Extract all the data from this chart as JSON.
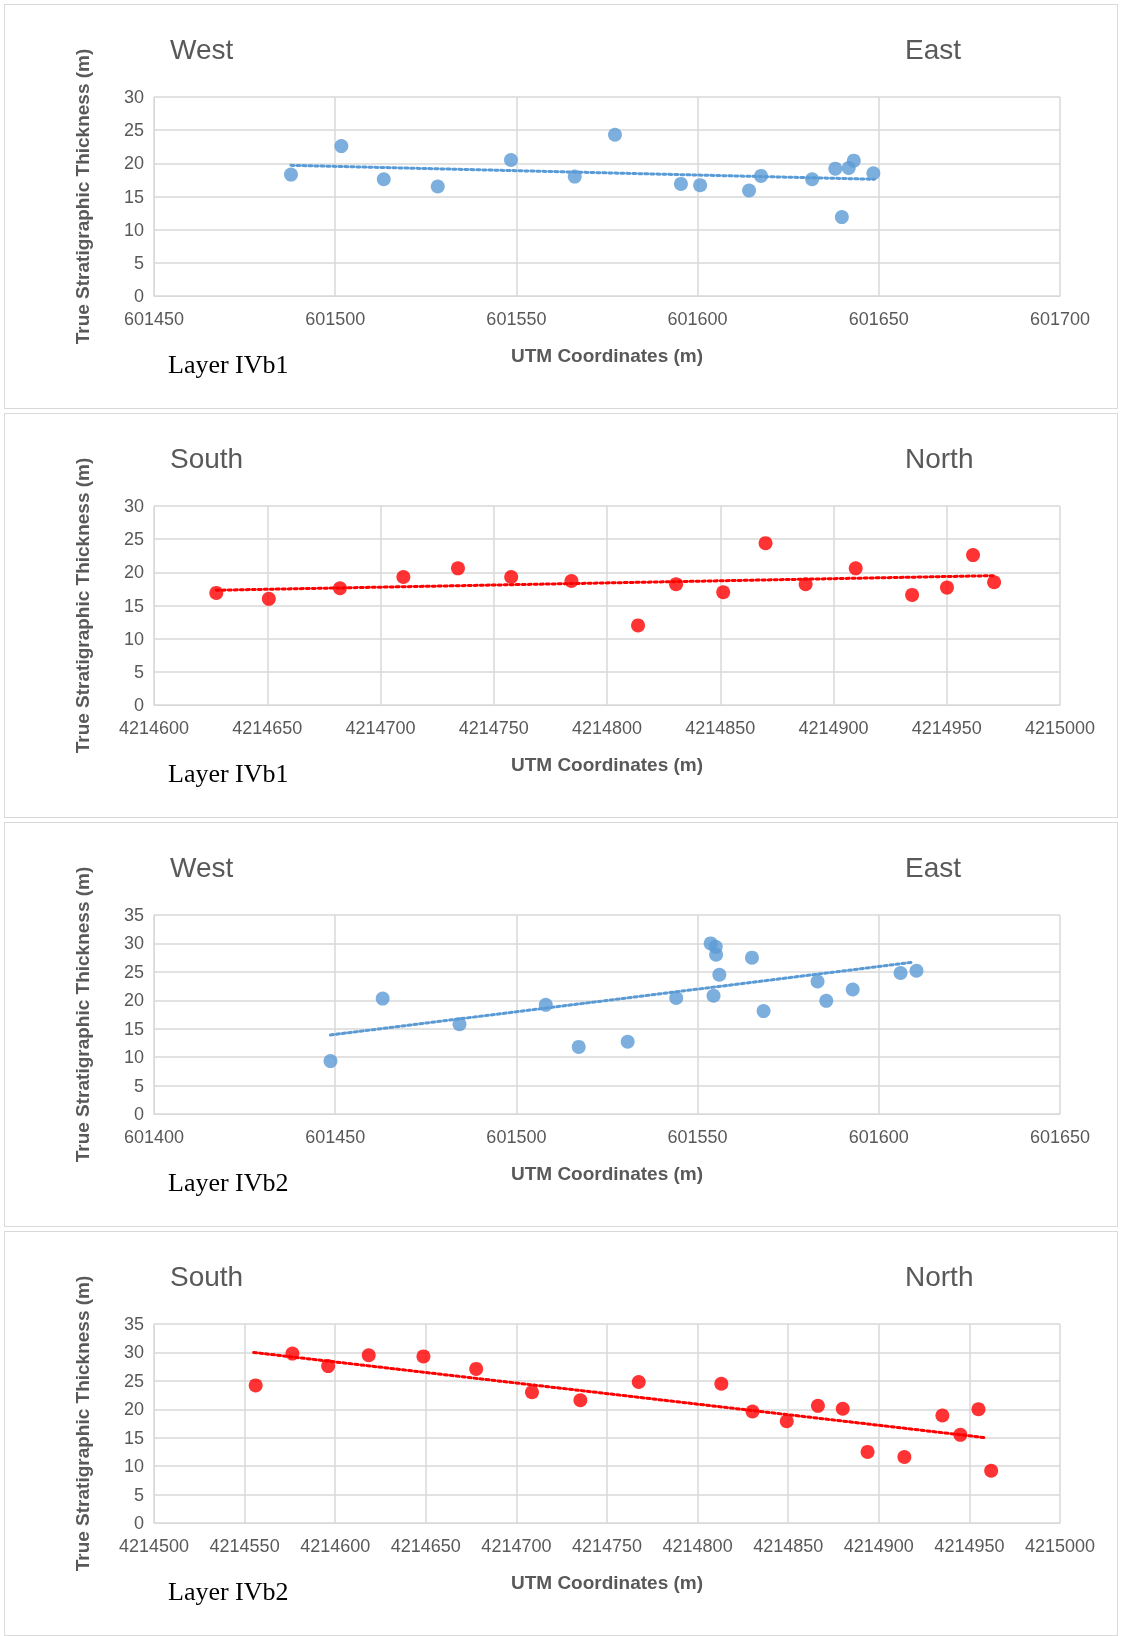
{
  "chart_data": [
    {
      "type": "scatter",
      "annotations": [
        "West",
        "East",
        "Layer IVb1"
      ],
      "xlabel": "UTM Coordinates (m)",
      "ylabel": "True Stratigraphic Thickness (m)",
      "xlim": [
        601450,
        601700
      ],
      "xticks": [
        601450,
        601500,
        601550,
        601600,
        601650,
        601700
      ],
      "ylim": [
        0,
        30
      ],
      "yticks": [
        0,
        5,
        10,
        15,
        20,
        25,
        30
      ],
      "grid": true,
      "marker": "circle",
      "series": [
        {
          "color": "#5b9bd5",
          "x": [
            601487.8,
            601501.7,
            601513.4,
            601528.3,
            601548.5,
            601566.1,
            601577.2,
            601595.4,
            601600.7,
            601614.2,
            601617.5,
            601631.6,
            601638.0,
            601639.8,
            601641.7,
            601643.1,
            601648.5
          ],
          "values": [
            18.3,
            22.6,
            17.6,
            16.5,
            20.5,
            18.0,
            24.3,
            16.9,
            16.7,
            15.9,
            18.1,
            17.6,
            19.2,
            11.9,
            19.3,
            20.4,
            18.5
          ]
        },
        {
          "type": "line",
          "line_style": "dotted",
          "marker": "none",
          "color": "#5b9bd5",
          "x": [
            601487.8,
            601648.8
          ],
          "values": [
            19.7,
            17.6
          ]
        }
      ]
    },
    {
      "type": "scatter",
      "annotations": [
        "South",
        "North",
        "Layer IVb1"
      ],
      "xlabel": "UTM Coordinates (m)",
      "ylabel": "True Stratigraphic Thickness (m)",
      "xlim": [
        4214600,
        4215000
      ],
      "xticks": [
        4214600,
        4214650,
        4214700,
        4214750,
        4214800,
        4214850,
        4214900,
        4214950,
        4215000
      ],
      "ylim": [
        0,
        30
      ],
      "yticks": [
        0,
        5,
        10,
        15,
        20,
        25,
        30
      ],
      "grid": true,
      "marker": "circle",
      "series": [
        {
          "color": "#ff0000",
          "x": [
            4214627.5,
            4214650.7,
            4214682.1,
            4214710.1,
            4214734.2,
            4214757.7,
            4214784.3,
            4214813.7,
            4214830.5,
            4214851.3,
            4214870.0,
            4214887.7,
            4214909.8,
            4214934.7,
            4214950.1,
            4214961.6,
            4214970.9
          ],
          "values": [
            16.9,
            16.0,
            17.6,
            19.3,
            20.6,
            19.3,
            18.7,
            12.0,
            18.2,
            17.0,
            24.4,
            18.2,
            20.6,
            16.6,
            17.7,
            22.6,
            18.5
          ]
        },
        {
          "type": "line",
          "line_style": "dotted",
          "marker": "none",
          "color": "#ff0000",
          "x": [
            4214627.5,
            4214970.9
          ],
          "values": [
            17.3,
            19.5
          ]
        }
      ]
    },
    {
      "type": "scatter",
      "annotations": [
        "West",
        "East",
        "Layer IVb2"
      ],
      "xlabel": "UTM Coordinates (m)",
      "ylabel": "True Stratigraphic Thickness (m)",
      "xlim": [
        601400,
        601650
      ],
      "xticks": [
        601400,
        601450,
        601500,
        601550,
        601600,
        601650
      ],
      "ylim": [
        0,
        35
      ],
      "yticks": [
        0,
        5,
        10,
        15,
        20,
        25,
        30,
        35
      ],
      "grid": true,
      "marker": "circle",
      "series": [
        {
          "color": "#5b9bd5",
          "x": [
            601448.7,
            601463.1,
            601484.3,
            601508.1,
            601517.2,
            601530.7,
            601544.1,
            601553.6,
            601555.0,
            601555.1,
            601554.4,
            601556.0,
            601565.0,
            601568.2,
            601583.1,
            601585.5,
            601592.8,
            601606.0,
            601610.4
          ],
          "values": [
            9.3,
            20.3,
            15.8,
            19.2,
            11.8,
            12.7,
            20.4,
            30.0,
            29.4,
            28.0,
            20.8,
            24.5,
            27.5,
            18.1,
            23.3,
            19.9,
            21.9,
            24.8,
            25.2
          ]
        },
        {
          "type": "line",
          "line_style": "dotted",
          "marker": "none",
          "color": "#5b9bd5",
          "x": [
            601448.7,
            601609.5
          ],
          "values": [
            13.9,
            26.7
          ]
        }
      ]
    },
    {
      "type": "scatter",
      "annotations": [
        "South",
        "North",
        "Layer IVb2"
      ],
      "xlabel": "UTM Coordinates (m)",
      "ylabel": "True Stratigraphic Thickness (m)",
      "xlim": [
        4214500,
        4215000
      ],
      "xticks": [
        4214500,
        4214550,
        4214600,
        4214650,
        4214700,
        4214750,
        4214800,
        4214850,
        4214900,
        4214950,
        4215000
      ],
      "ylim": [
        0,
        35
      ],
      "yticks": [
        0,
        5,
        10,
        15,
        20,
        25,
        30,
        35
      ],
      "grid": true,
      "marker": "circle",
      "series": [
        {
          "color": "#ff0000",
          "x": [
            4214556.1,
            4214576.4,
            4214596.1,
            4214618.5,
            4214648.7,
            4214677.8,
            4214708.6,
            4214735.3,
            4214767.5,
            4214813.1,
            4214830.3,
            4214849.2,
            4214866.4,
            4214880.1,
            4214893.8,
            4214914.1,
            4214935.1,
            4214945.0,
            4214955.0,
            4214962.0
          ],
          "values": [
            24.2,
            29.8,
            27.6,
            29.5,
            29.3,
            27.1,
            23.0,
            21.6,
            24.8,
            24.5,
            19.6,
            17.9,
            20.6,
            20.1,
            12.5,
            11.6,
            18.9,
            15.5,
            20.0,
            9.2
          ]
        },
        {
          "type": "line",
          "line_style": "dotted",
          "marker": "none",
          "color": "#ff0000",
          "x": [
            4214555.0,
            4214959.0
          ],
          "values": [
            30.0,
            15.0
          ]
        }
      ]
    }
  ]
}
